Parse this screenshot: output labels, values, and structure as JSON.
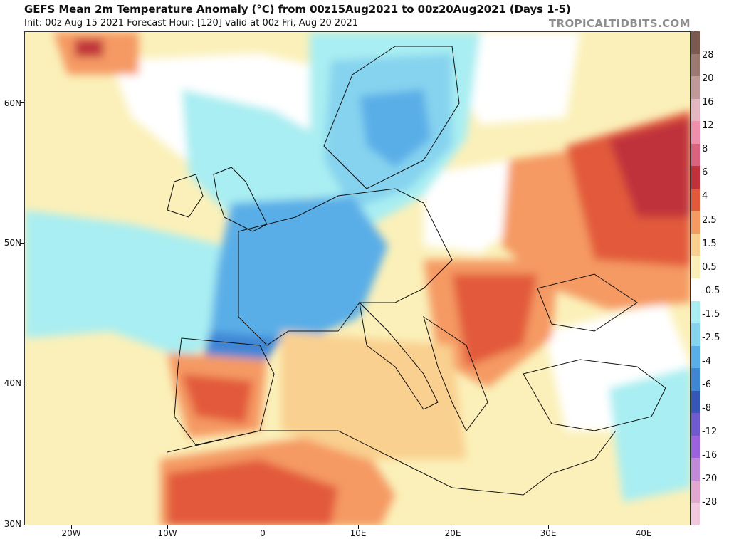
{
  "header": {
    "title": "GEFS Mean 2m Temperature Anomaly (°C) from 00z15Aug2021 to 00z20Aug2021 (Days 1-5)",
    "subtitle": "Init: 00z Aug 15 2021   Forecast Hour: [120]   valid at 00z Fri, Aug 20 2021",
    "brand": "TROPICALTIDBITS.COM"
  },
  "axes": {
    "lat_labels": [
      "60N",
      "50N",
      "40N",
      "30N"
    ],
    "lon_labels": [
      "20W",
      "10W",
      "0",
      "10E",
      "20E",
      "30E",
      "40E"
    ]
  },
  "colorbar": {
    "labels": [
      "28",
      "20",
      "16",
      "12",
      "8",
      "6",
      "4",
      "2.5",
      "1.5",
      "0.5",
      "-0.5",
      "-1.5",
      "-2.5",
      "-4",
      "-6",
      "-8",
      "-12",
      "-16",
      "-20",
      "-28"
    ],
    "colors": [
      "#7a5a4e",
      "#9c7a72",
      "#c09a98",
      "#e3b6c2",
      "#ef8fae",
      "#d9627e",
      "#c0313a",
      "#e25a3b",
      "#f59a63",
      "#f9d08f",
      "#fbf0b9",
      "#ffffff",
      "#a9eef2",
      "#86d3ef",
      "#5aaee7",
      "#3f86d5",
      "#3558b8",
      "#6f5ad0",
      "#9b63dd",
      "#c08ad6",
      "#e2a7cf",
      "#f2c8df"
    ]
  },
  "map_colors": {
    "ocean_neutral": "#ffffff",
    "warm_light": "#fbf0b9",
    "warm_mid": "#f9d08f",
    "warm_orange": "#f59a63",
    "warm_red": "#e25a3b",
    "warm_dark": "#c0313a",
    "cool_light": "#a9eef2",
    "cool_mid": "#86d3ef",
    "cool_blue": "#5aaee7",
    "cool_dark": "#3f86d5"
  }
}
